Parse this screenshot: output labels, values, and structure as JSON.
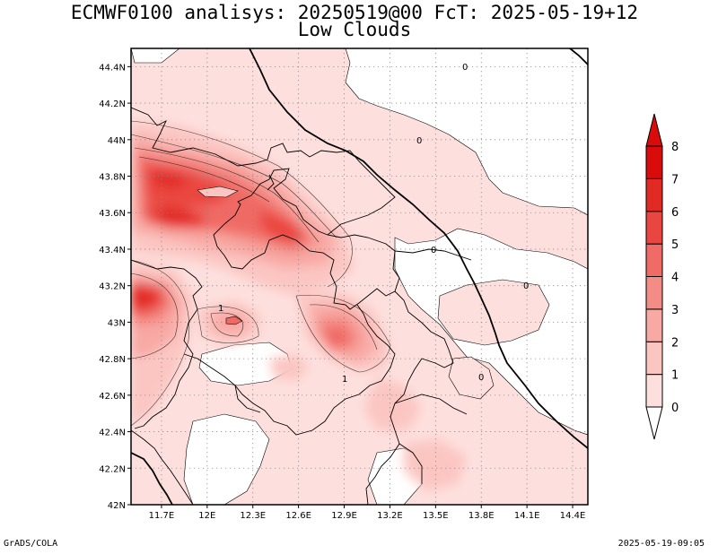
{
  "title": {
    "line1": "ECMWF0100 analisys: 20250519@00 FcT: 2025-05-19+12",
    "line2": "Low Clouds"
  },
  "footer": {
    "left": "GrADS/COLA",
    "right": "2025-05-19-09:05"
  },
  "chart_data": {
    "type": "heatmap",
    "field": "Low Clouds",
    "lon_range": [
      11.5,
      14.5
    ],
    "lat_range": [
      42.0,
      44.5
    ],
    "x_ticks": [
      "11.7E",
      "12E",
      "12.3E",
      "12.6E",
      "12.9E",
      "13.2E",
      "13.5E",
      "13.8E",
      "14.1E",
      "14.4E"
    ],
    "y_ticks": [
      "42N",
      "42.2N",
      "42.4N",
      "42.6N",
      "42.8N",
      "43N",
      "43.2N",
      "43.4N",
      "43.6N",
      "43.8N",
      "44N",
      "44.2N",
      "44.4N"
    ],
    "grid": true,
    "colorbar": {
      "levels": [
        "0",
        "1",
        "2",
        "3",
        "4",
        "5",
        "6",
        "7",
        "8"
      ],
      "colors": [
        "#ffffff",
        "#fde0de",
        "#fbc6c2",
        "#f8a9a4",
        "#f48c86",
        "#f06b65",
        "#ea4640",
        "#e22a25",
        "#d90b0b"
      ]
    },
    "contour_labels": [
      "0",
      "0",
      "0",
      "0",
      "0",
      "1",
      "1"
    ],
    "maxima": [
      {
        "lon": 11.55,
        "lat": 43.15,
        "value": 7
      },
      {
        "lon": 11.8,
        "lat": 43.6,
        "value": 6
      },
      {
        "lon": 11.75,
        "lat": 43.8,
        "value": 6
      },
      {
        "lon": 12.55,
        "lat": 43.45,
        "value": 5
      },
      {
        "lon": 12.9,
        "lat": 42.9,
        "value": 5
      },
      {
        "lon": 12.2,
        "lat": 43.0,
        "value": 4
      }
    ]
  }
}
